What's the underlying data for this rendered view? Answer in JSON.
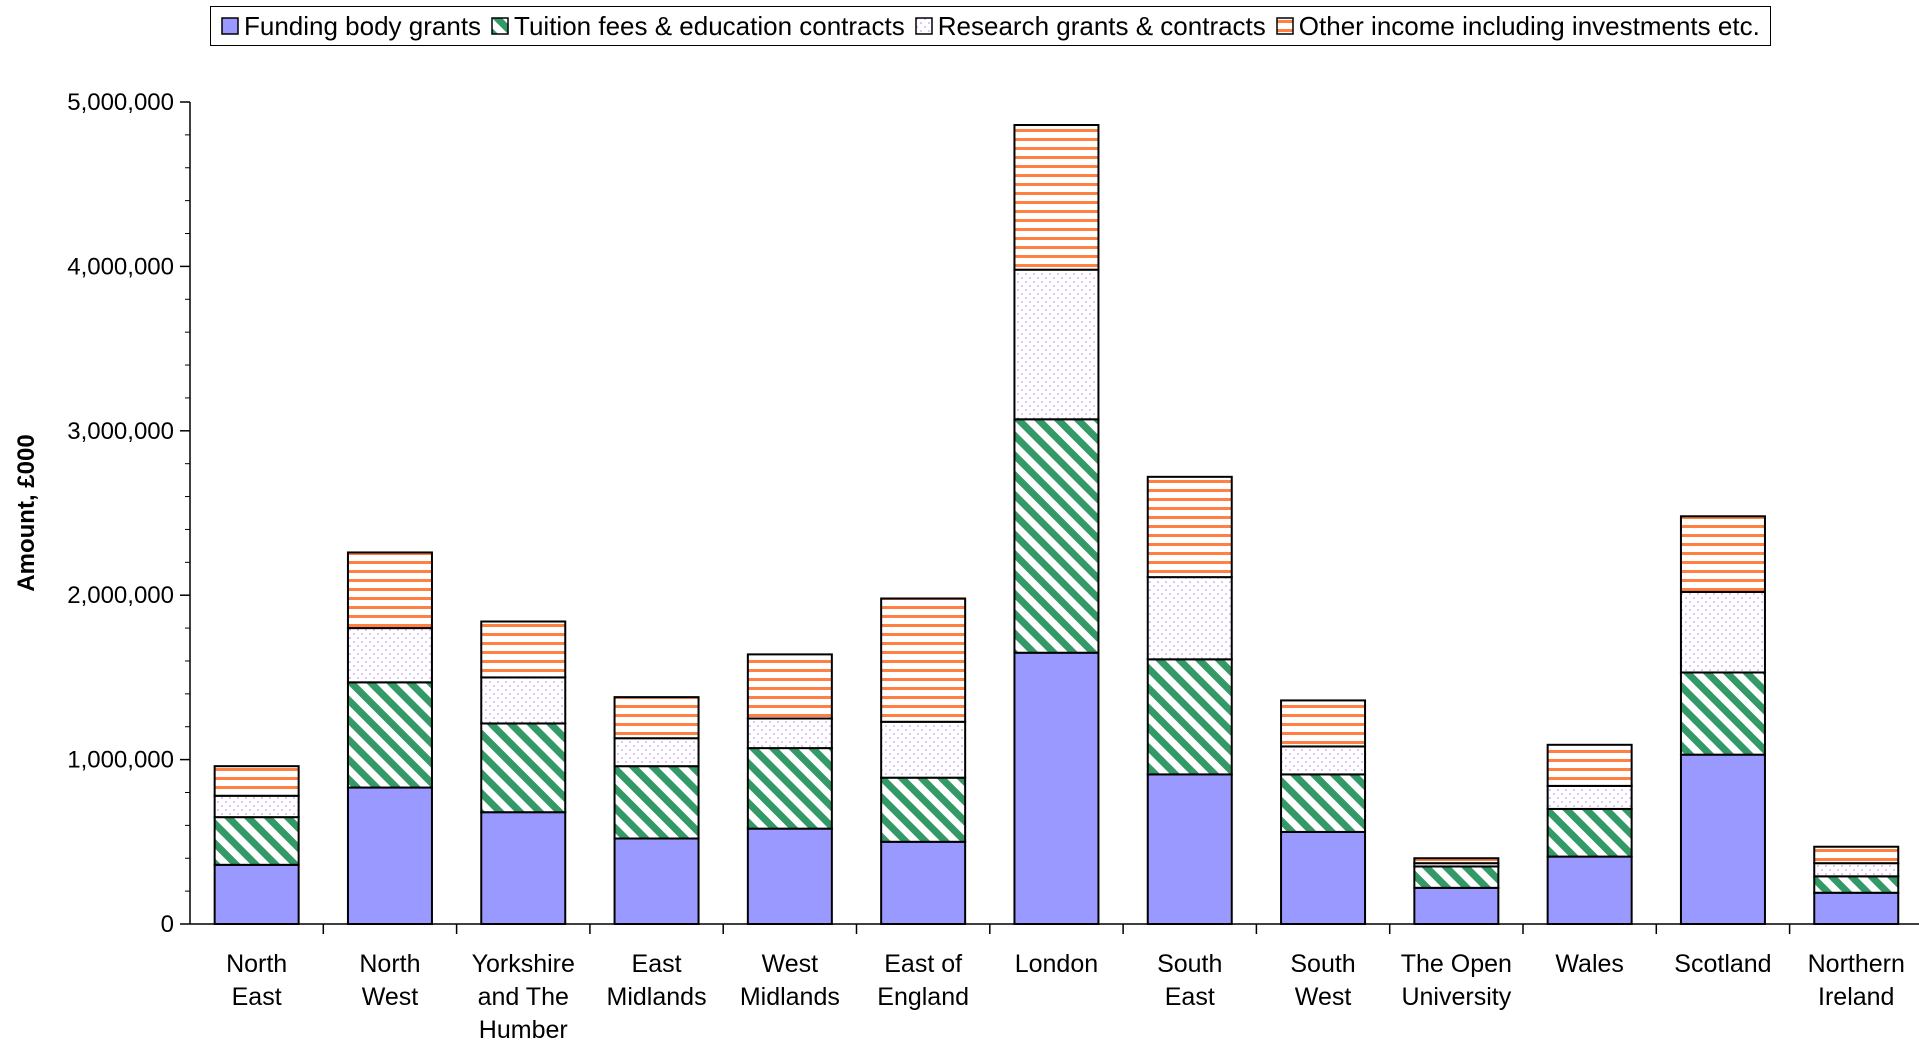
{
  "chart_data": {
    "type": "bar",
    "stacked": true,
    "ylabel": "Amount, £000",
    "ylim": [
      0,
      5000000
    ],
    "yticks": [
      0,
      1000000,
      2000000,
      3000000,
      4000000,
      5000000
    ],
    "ytick_labels": [
      "0",
      "1,000,000",
      "2,000,000",
      "3,000,000",
      "4,000,000",
      "5,000,000"
    ],
    "categories": [
      [
        "North",
        "East"
      ],
      [
        "North",
        "West"
      ],
      [
        "Yorkshire",
        "and The",
        "Humber"
      ],
      [
        "East",
        "Midlands"
      ],
      [
        "West",
        "Midlands"
      ],
      [
        "East of",
        "England"
      ],
      [
        "London"
      ],
      [
        "South",
        "East"
      ],
      [
        "South",
        "West"
      ],
      [
        "The Open",
        "University"
      ],
      [
        "Wales"
      ],
      [
        "Scotland"
      ],
      [
        "Northern",
        "Ireland"
      ]
    ],
    "series": [
      {
        "name": "Funding body grants",
        "values": [
          360000,
          830000,
          680000,
          520000,
          580000,
          500000,
          1650000,
          910000,
          560000,
          220000,
          410000,
          1030000,
          190000
        ]
      },
      {
        "name": "Tuition fees & education contracts",
        "values": [
          290000,
          640000,
          540000,
          440000,
          490000,
          390000,
          1420000,
          700000,
          350000,
          130000,
          290000,
          500000,
          100000
        ]
      },
      {
        "name": "Research grants & contracts",
        "values": [
          130000,
          330000,
          280000,
          170000,
          180000,
          340000,
          910000,
          500000,
          170000,
          20000,
          140000,
          490000,
          80000
        ]
      },
      {
        "name": "Other income including investments etc.",
        "values": [
          180000,
          460000,
          340000,
          250000,
          390000,
          750000,
          880000,
          610000,
          280000,
          30000,
          250000,
          460000,
          100000
        ]
      }
    ],
    "legend_position": "top",
    "grid": false
  },
  "legend": {
    "items": [
      {
        "label": "Funding body grants",
        "pattern": "solid"
      },
      {
        "label": "Tuition fees & education contracts",
        "pattern": "diagonal"
      },
      {
        "label": "Research grants & contracts",
        "pattern": "dots"
      },
      {
        "label": "Other income including investments etc.",
        "pattern": "horizontal"
      }
    ]
  },
  "colors": {
    "funding": "#9999ff",
    "tuition": "#339966",
    "research_dots": "#cc99ff",
    "other": "#ff8040",
    "outline": "#000000"
  }
}
